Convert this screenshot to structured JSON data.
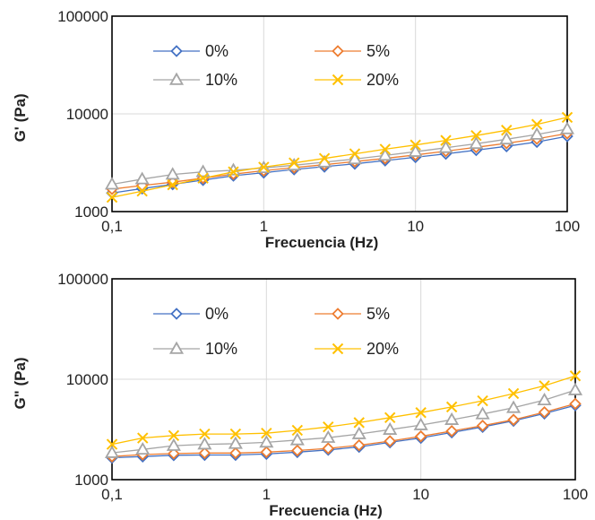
{
  "chart_data": [
    {
      "type": "line",
      "xscale": "log",
      "yscale": "log",
      "xlim": [
        0.1,
        100
      ],
      "ylim": [
        1000,
        100000
      ],
      "xticks": [
        "0,1",
        "1",
        "10",
        "100"
      ],
      "yticks": [
        "1000",
        "10000",
        "100000"
      ],
      "xlabel": "Frecuencia (Hz)",
      "ylabel": "G' (Pa)",
      "grid": true,
      "legend_position": "top-left",
      "x": [
        0.1,
        0.158,
        0.251,
        0.398,
        0.631,
        1,
        1.585,
        2.512,
        3.981,
        6.31,
        10,
        15.85,
        25.12,
        39.81,
        63.1,
        100
      ],
      "series": [
        {
          "name": "0%",
          "color": "#4472C4",
          "marker": "diamond",
          "values": [
            1550,
            1720,
            1900,
            2100,
            2330,
            2500,
            2700,
            2880,
            3080,
            3330,
            3600,
            3900,
            4250,
            4650,
            5150,
            5900
          ]
        },
        {
          "name": "5%",
          "color": "#ED7D31",
          "marker": "diamond",
          "values": [
            1700,
            1850,
            2000,
            2200,
            2420,
            2620,
            2820,
            3020,
            3250,
            3500,
            3800,
            4150,
            4550,
            5000,
            5550,
            6300
          ]
        },
        {
          "name": "10%",
          "color": "#A5A5A5",
          "marker": "triangle",
          "values": [
            1900,
            2150,
            2400,
            2550,
            2650,
            2800,
            2980,
            3200,
            3450,
            3750,
            4100,
            4500,
            4950,
            5500,
            6150,
            7000
          ]
        },
        {
          "name": "20%",
          "color": "#FFC000",
          "marker": "cross",
          "values": [
            1400,
            1620,
            1880,
            2200,
            2550,
            2850,
            3150,
            3500,
            3900,
            4350,
            4800,
            5350,
            6000,
            6800,
            7800,
            9200
          ]
        }
      ]
    },
    {
      "type": "line",
      "xscale": "log",
      "yscale": "log",
      "xlim": [
        0.1,
        100
      ],
      "ylim": [
        1000,
        100000
      ],
      "xticks": [
        "0,1",
        "1",
        "10",
        "100"
      ],
      "yticks": [
        "1000",
        "10000",
        "100000"
      ],
      "xlabel": "Frecuencia (Hz)",
      "ylabel": "G\" (Pa)",
      "grid": true,
      "legend_position": "top-left",
      "x": [
        0.1,
        0.158,
        0.251,
        0.398,
        0.631,
        1,
        1.585,
        2.512,
        3.981,
        6.31,
        10,
        15.85,
        25.12,
        39.81,
        63.1,
        100
      ],
      "series": [
        {
          "name": "0%",
          "color": "#4472C4",
          "marker": "diamond",
          "values": [
            1650,
            1700,
            1750,
            1760,
            1760,
            1800,
            1880,
            1980,
            2120,
            2350,
            2600,
            2950,
            3350,
            3850,
            4550,
            5500
          ]
        },
        {
          "name": "5%",
          "color": "#ED7D31",
          "marker": "diamond",
          "values": [
            1700,
            1780,
            1820,
            1840,
            1840,
            1880,
            1950,
            2050,
            2200,
            2420,
            2700,
            3050,
            3450,
            3950,
            4700,
            5700
          ]
        },
        {
          "name": "10%",
          "color": "#A5A5A5",
          "marker": "triangle",
          "values": [
            1850,
            2000,
            2180,
            2250,
            2280,
            2350,
            2480,
            2620,
            2850,
            3150,
            3500,
            3950,
            4500,
            5200,
            6200,
            7800
          ]
        },
        {
          "name": "20%",
          "color": "#FFC000",
          "marker": "cross",
          "values": [
            2250,
            2600,
            2750,
            2850,
            2850,
            2900,
            3100,
            3350,
            3700,
            4150,
            4650,
            5300,
            6100,
            7200,
            8600,
            10800
          ]
        }
      ]
    }
  ]
}
